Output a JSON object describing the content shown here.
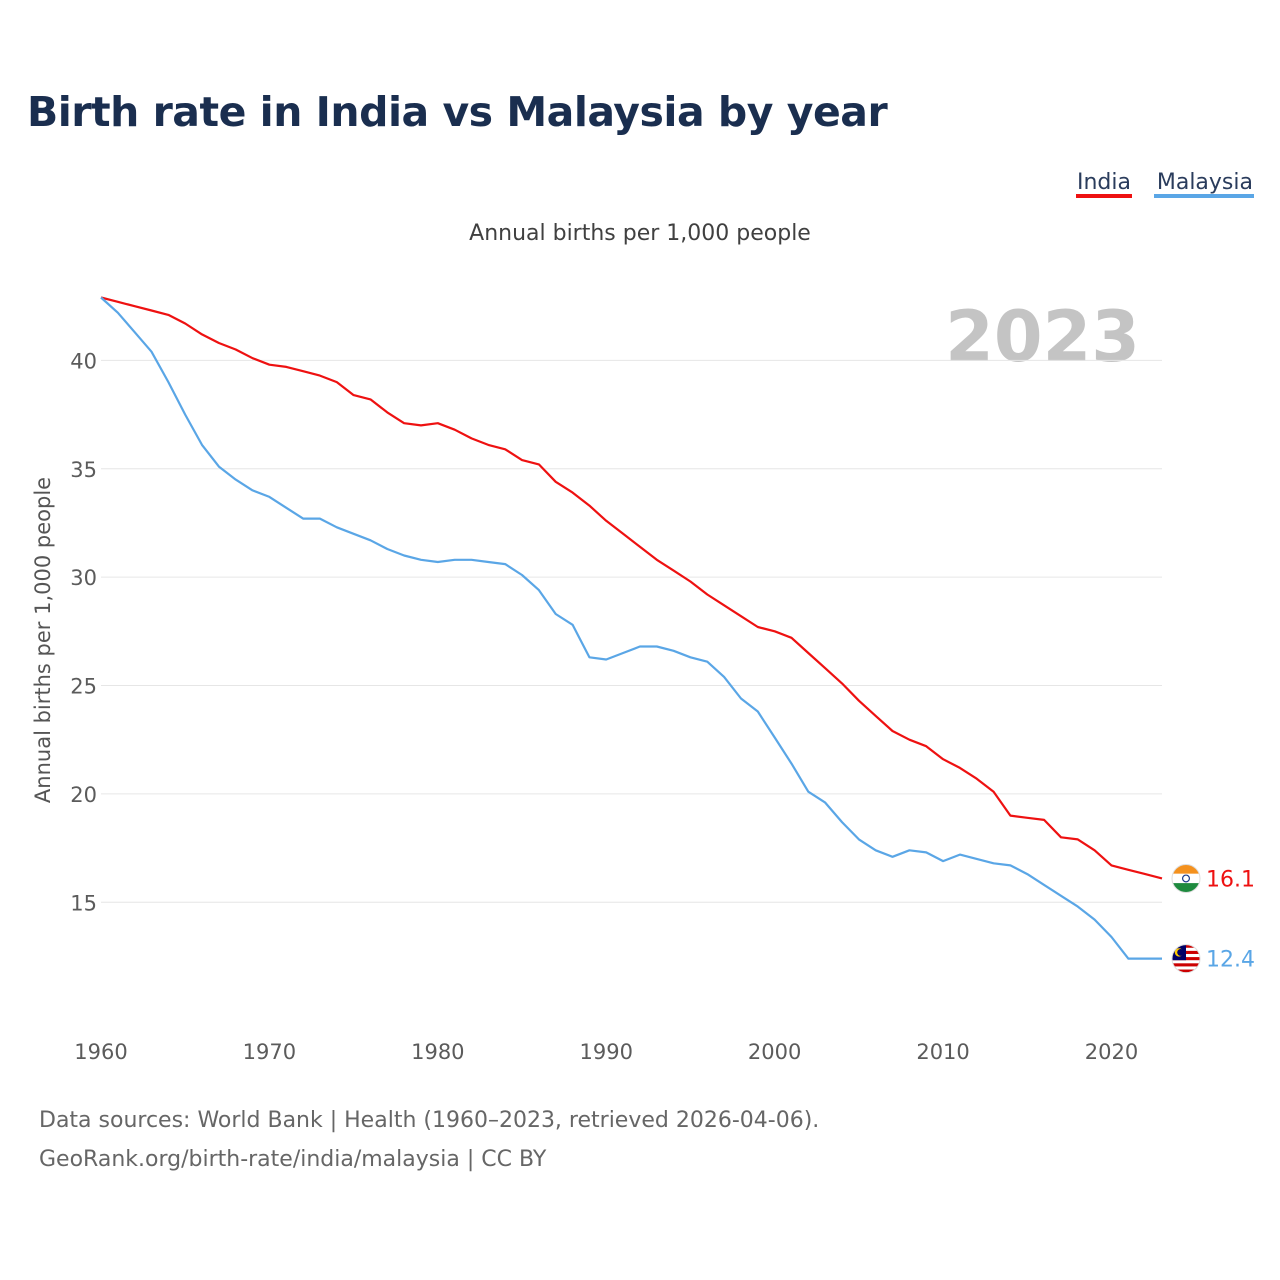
{
  "page": {
    "title": "Birth rate in India vs Malaysia by year",
    "footer_source": "Data sources: World Bank | Health (1960–2023, retrieved 2026-04-06).",
    "footer_credit": "GeoRank.org/birth-rate/india/malaysia | CC BY"
  },
  "chart_data": {
    "type": "line",
    "title": "Birth rate in India vs Malaysia by year",
    "subtitle": "Annual births per 1,000 people",
    "ylabel": "Annual births per 1,000 people",
    "xlabel": "",
    "year_badge": "2023",
    "xlim": [
      1960,
      2023
    ],
    "ylim": [
      10.4,
      44.4
    ],
    "x_ticks": [
      1960,
      1970,
      1980,
      1990,
      2000,
      2010,
      2020
    ],
    "y_ticks": [
      15,
      20,
      25,
      30,
      35,
      40
    ],
    "grid": true,
    "legend": "top-right",
    "x": [
      1960,
      1961,
      1962,
      1963,
      1964,
      1965,
      1966,
      1967,
      1968,
      1969,
      1970,
      1971,
      1972,
      1973,
      1974,
      1975,
      1976,
      1977,
      1978,
      1979,
      1980,
      1981,
      1982,
      1983,
      1984,
      1985,
      1986,
      1987,
      1988,
      1989,
      1990,
      1991,
      1992,
      1993,
      1994,
      1995,
      1996,
      1997,
      1998,
      1999,
      2000,
      2001,
      2002,
      2003,
      2004,
      2005,
      2006,
      2007,
      2008,
      2009,
      2010,
      2011,
      2012,
      2013,
      2014,
      2015,
      2016,
      2017,
      2018,
      2019,
      2020,
      2021,
      2022,
      2023
    ],
    "series": [
      {
        "name": "India",
        "color": "#ee1111",
        "end_label": "16.1",
        "flag": "india-flag",
        "values": [
          42.9,
          42.7,
          42.5,
          42.3,
          42.1,
          41.7,
          41.2,
          40.8,
          40.5,
          40.1,
          39.8,
          39.7,
          39.5,
          39.3,
          39.0,
          38.4,
          38.2,
          37.6,
          37.1,
          37.0,
          37.1,
          36.8,
          36.4,
          36.1,
          35.9,
          35.4,
          35.2,
          34.4,
          33.9,
          33.3,
          32.6,
          32.0,
          31.4,
          30.8,
          30.3,
          29.8,
          29.2,
          28.7,
          28.2,
          27.7,
          27.5,
          27.2,
          26.5,
          25.8,
          25.1,
          24.3,
          23.6,
          22.9,
          22.5,
          22.2,
          21.6,
          21.2,
          20.7,
          20.1,
          19.0,
          18.9,
          18.8,
          18.0,
          17.9,
          17.4,
          16.7,
          16.5,
          16.3,
          16.1
        ]
      },
      {
        "name": "Malaysia",
        "color": "#5aa6e6",
        "end_label": "12.4",
        "flag": "malaysia-flag",
        "values": [
          42.9,
          42.2,
          41.3,
          40.4,
          39.0,
          37.5,
          36.1,
          35.1,
          34.5,
          34.0,
          33.7,
          33.2,
          32.7,
          32.7,
          32.3,
          32.0,
          31.7,
          31.3,
          31.0,
          30.8,
          30.7,
          30.8,
          30.8,
          30.7,
          30.6,
          30.1,
          29.4,
          28.3,
          27.8,
          26.3,
          26.2,
          26.5,
          26.8,
          26.8,
          26.6,
          26.3,
          26.1,
          25.4,
          24.4,
          23.8,
          22.6,
          21.4,
          20.1,
          19.6,
          18.7,
          17.9,
          17.4,
          17.1,
          17.4,
          17.3,
          16.9,
          17.2,
          17.0,
          16.8,
          16.7,
          16.3,
          15.8,
          15.3,
          14.8,
          14.2,
          13.4,
          12.4,
          12.4,
          12.4
        ]
      }
    ]
  }
}
